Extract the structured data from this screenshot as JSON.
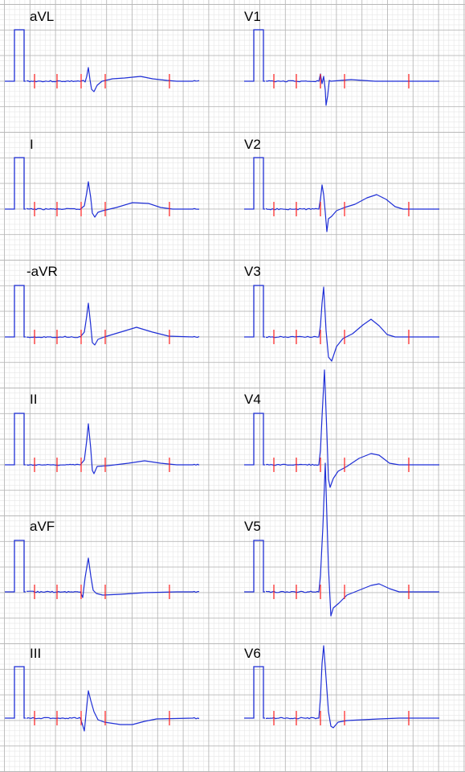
{
  "chart_data": {
    "type": "line",
    "title": "",
    "colors": {
      "trace": "#1f2fd6",
      "marker": "#ff2020",
      "grid_major": "#b8b8b8",
      "grid_minor": "#e6e6e6"
    },
    "grid": true,
    "leads": [
      {
        "name": "aVL",
        "column": 0,
        "row": 0,
        "template": "aVL"
      },
      {
        "name": "I",
        "column": 0,
        "row": 1,
        "template": "I"
      },
      {
        "name": "-aVR",
        "column": 0,
        "row": 2,
        "template": "aVR"
      },
      {
        "name": "II",
        "column": 0,
        "row": 3,
        "template": "II"
      },
      {
        "name": "aVF",
        "column": 0,
        "row": 4,
        "template": "aVF"
      },
      {
        "name": "III",
        "column": 0,
        "row": 5,
        "template": "III"
      },
      {
        "name": "V1",
        "column": 1,
        "row": 0,
        "template": "V1"
      },
      {
        "name": "V2",
        "column": 1,
        "row": 1,
        "template": "V2"
      },
      {
        "name": "V3",
        "column": 1,
        "row": 2,
        "template": "V3"
      },
      {
        "name": "V4",
        "column": 1,
        "row": 3,
        "template": "V4"
      },
      {
        "name": "V5",
        "column": 1,
        "row": 4,
        "template": "V5"
      },
      {
        "name": "V6",
        "column": 1,
        "row": 5,
        "template": "V6"
      }
    ]
  }
}
